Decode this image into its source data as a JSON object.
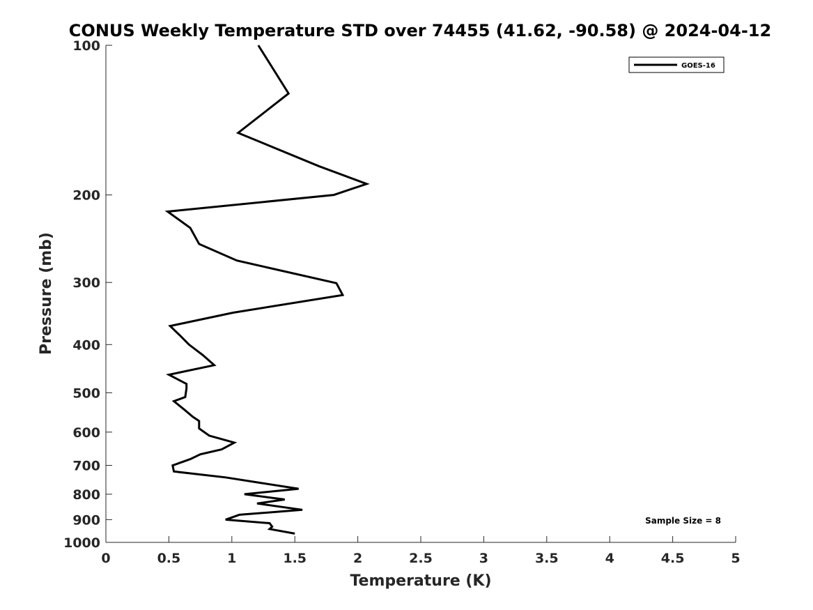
{
  "chart_data": {
    "type": "line",
    "title": "CONUS Weekly Temperature STD over 74455 (41.62, -90.58) @ 2024-04-12",
    "xlabel": "Temperature (K)",
    "ylabel": "Pressure (mb)",
    "xlim": [
      0,
      5
    ],
    "ylim": [
      100,
      1000
    ],
    "yscale": "log",
    "y_reversed": true,
    "grid": false,
    "legend_placement": "top-right",
    "x_ticks": [
      "0",
      "0.5",
      "1",
      "1.5",
      "2",
      "2.5",
      "3",
      "3.5",
      "4",
      "4.5",
      "5"
    ],
    "y_ticks": [
      "100",
      "200",
      "300",
      "400",
      "500",
      "600",
      "700",
      "800",
      "900",
      "1000"
    ],
    "annotation": "Sample Size = 8",
    "series": [
      {
        "name": "GOES-16",
        "color": "#000000",
        "points": [
          [
            1.21,
            100
          ],
          [
            1.45,
            125
          ],
          [
            1.05,
            150
          ],
          [
            1.69,
            175
          ],
          [
            2.07,
            190
          ],
          [
            1.81,
            200
          ],
          [
            0.49,
            216
          ],
          [
            0.67,
            233
          ],
          [
            0.74,
            251
          ],
          [
            1.04,
            271
          ],
          [
            1.83,
            301
          ],
          [
            1.88,
            318
          ],
          [
            1.01,
            345
          ],
          [
            0.51,
            367
          ],
          [
            0.59,
            384
          ],
          [
            0.66,
            400
          ],
          [
            0.77,
            420
          ],
          [
            0.86,
            440
          ],
          [
            0.5,
            460
          ],
          [
            0.64,
            480
          ],
          [
            0.64,
            490
          ],
          [
            0.63,
            510
          ],
          [
            0.54,
            520
          ],
          [
            0.62,
            540
          ],
          [
            0.69,
            559
          ],
          [
            0.74,
            570
          ],
          [
            0.74,
            590
          ],
          [
            0.82,
            610
          ],
          [
            1.02,
            630
          ],
          [
            0.92,
            650
          ],
          [
            0.75,
            665
          ],
          [
            0.67,
            680
          ],
          [
            0.53,
            700
          ],
          [
            0.54,
            720
          ],
          [
            0.95,
            740
          ],
          [
            1.24,
            760
          ],
          [
            1.53,
            780
          ],
          [
            1.1,
            800
          ],
          [
            1.42,
            820
          ],
          [
            1.2,
            835
          ],
          [
            1.56,
            860
          ],
          [
            1.06,
            880
          ],
          [
            0.95,
            900
          ],
          [
            1.3,
            915
          ],
          [
            1.32,
            930
          ],
          [
            1.3,
            940
          ],
          [
            1.5,
            960
          ]
        ]
      }
    ]
  }
}
